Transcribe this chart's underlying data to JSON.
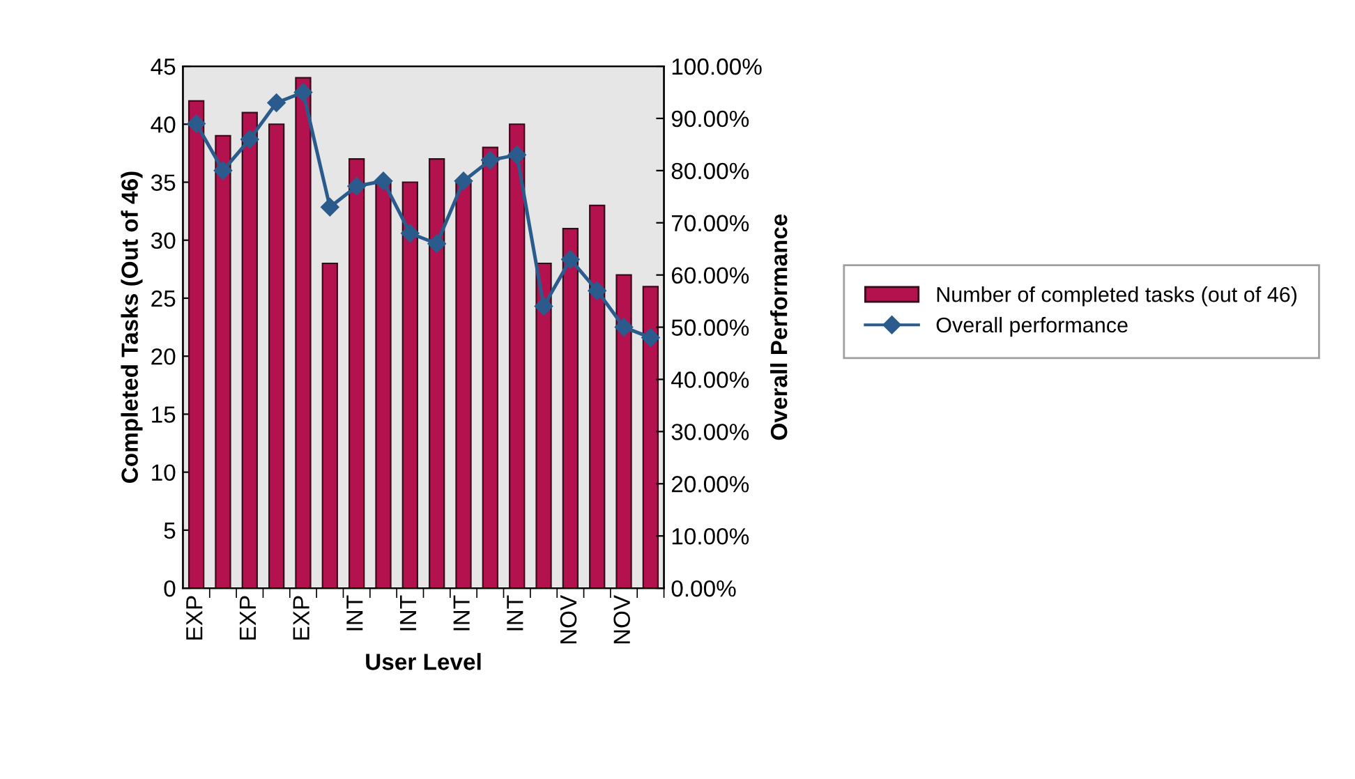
{
  "chart_data": {
    "type": "bar",
    "xlabel": "User Level",
    "ylabel": "Completed Tasks (Out of 46)",
    "y2label": "Overall Performance",
    "categories": [
      "EXP",
      null,
      "EXP",
      null,
      "EXP",
      null,
      "INT",
      null,
      "INT",
      null,
      "INT",
      null,
      "INT",
      null,
      "NOV",
      null,
      "NOV",
      null
    ],
    "series": [
      {
        "name": "Number of completed tasks (out of 46)",
        "color": "#b3124f",
        "values": [
          42,
          39,
          41,
          40,
          44,
          28,
          37,
          35,
          35,
          37,
          35,
          38,
          40,
          28,
          31,
          33,
          27,
          26
        ]
      },
      {
        "name": "Overall performance",
        "type": "line",
        "axis": "y2",
        "color": "#2a5b8c",
        "marker": "diamond",
        "values": [
          89,
          80,
          86,
          93,
          95,
          73,
          77,
          78,
          68,
          66,
          78,
          82,
          83,
          54,
          63,
          57,
          50,
          48
        ]
      }
    ],
    "ylim": [
      0,
      45
    ],
    "yticks": [
      0,
      5,
      10,
      15,
      20,
      25,
      30,
      35,
      40,
      45
    ],
    "y2lim": [
      0,
      100
    ],
    "y2ticks": [
      {
        "value": 0,
        "label": "0.00%"
      },
      {
        "value": 10,
        "label": "10.00%"
      },
      {
        "value": 20,
        "label": "20.00%"
      },
      {
        "value": 30,
        "label": "30.00%"
      },
      {
        "value": 40,
        "label": "40.00%"
      },
      {
        "value": 50,
        "label": "50.00%"
      },
      {
        "value": 60,
        "label": "60.00%"
      },
      {
        "value": 70,
        "label": "70.00%"
      },
      {
        "value": 80,
        "label": "80.00%"
      },
      {
        "value": 90,
        "label": "90.00%"
      },
      {
        "value": 100,
        "label": "100.00%"
      }
    ],
    "legend": "right",
    "grid": false
  }
}
